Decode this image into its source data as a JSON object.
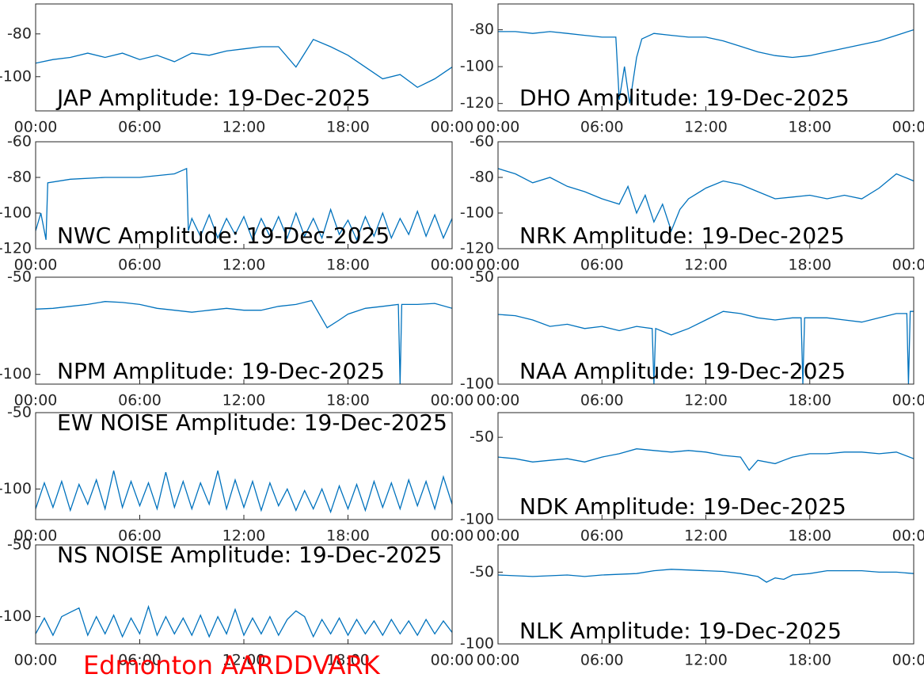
{
  "chart_data": [
    {
      "type": "line",
      "title": "JAP Amplitude: 19-Dec-2025",
      "color": "#0072bd",
      "x": [
        0,
        1,
        2,
        3,
        4,
        5,
        6,
        7,
        8,
        9,
        10,
        11,
        12,
        13,
        14,
        15,
        16,
        17,
        18,
        19,
        20,
        21,
        22,
        23,
        24
      ],
      "values": [
        -93.7,
        -92,
        -91,
        -89,
        -91,
        -89,
        -92,
        -90,
        -93,
        -89,
        -90,
        -88,
        -87,
        -86,
        -86,
        -95.5,
        -82.6,
        -86,
        -90,
        -95.5,
        -101,
        -99,
        -105,
        -101,
        -95.5
      ],
      "xlim": [
        0,
        24
      ],
      "xticks": [
        {
          "value": 0,
          "label": "00:00"
        },
        {
          "value": 6,
          "label": "06:00"
        },
        {
          "value": 12,
          "label": "12:00"
        },
        {
          "value": 18,
          "label": "18:00"
        },
        {
          "value": 24,
          "label": "00:00"
        }
      ],
      "ylim": [
        -116,
        -66
      ],
      "yticks": [
        -80,
        -100
      ]
    },
    {
      "type": "line",
      "title": "DHO Amplitude: 19-Dec-2025",
      "color": "#0072bd",
      "x": [
        0,
        1,
        2,
        3,
        4,
        5,
        6,
        6.8,
        7,
        7.3,
        7.6,
        8,
        8.3,
        9,
        10,
        11,
        12,
        13,
        14,
        15,
        16,
        17,
        18,
        19,
        20,
        21,
        22,
        23,
        24
      ],
      "values": [
        -81,
        -81,
        -82,
        -81,
        -82,
        -83,
        -84,
        -84,
        -118,
        -100,
        -120,
        -95,
        -85,
        -82,
        -83,
        -84,
        -84,
        -86,
        -89,
        -92,
        -94,
        -95,
        -94,
        -92,
        -90,
        -88,
        -86,
        -83,
        -80
      ],
      "xlim": [
        0,
        24
      ],
      "xticks": [
        {
          "value": 0,
          "label": "00:00"
        },
        {
          "value": 6,
          "label": "06:00"
        },
        {
          "value": 12,
          "label": "12:00"
        },
        {
          "value": 18,
          "label": "18:00"
        },
        {
          "value": 24,
          "label": "00:00"
        }
      ],
      "ylim": [
        -124,
        -66
      ],
      "yticks": [
        -80,
        -100,
        -120
      ]
    },
    {
      "type": "line",
      "title": "NWC Amplitude: 19-Dec-2025",
      "color": "#0072bd",
      "x": [
        0,
        0.3,
        0.6,
        0.7,
        2,
        4,
        6,
        8,
        8.7,
        8.8,
        9,
        9.5,
        10,
        10.5,
        11,
        11.5,
        12,
        12.5,
        13,
        13.5,
        14,
        14.5,
        15,
        15.5,
        16,
        16.5,
        17,
        17.5,
        18,
        18.5,
        19,
        19.5,
        20,
        20.5,
        21,
        21.5,
        22,
        22.5,
        23,
        23.5,
        24
      ],
      "values": [
        -110,
        -100,
        -115,
        -83,
        -81,
        -80,
        -80,
        -78,
        -75,
        -110,
        -103,
        -113,
        -101,
        -114,
        -103,
        -112,
        -102,
        -115,
        -103,
        -113,
        -102,
        -114,
        -100,
        -113,
        -103,
        -114,
        -98,
        -112,
        -104,
        -115,
        -102,
        -113,
        -100,
        -114,
        -103,
        -112,
        -99,
        -113,
        -101,
        -114,
        -103
      ],
      "xlim": [
        0,
        24
      ],
      "xticks": [
        {
          "value": 0,
          "label": "00:00"
        },
        {
          "value": 6,
          "label": "06:00"
        },
        {
          "value": 12,
          "label": "12:00"
        },
        {
          "value": 18,
          "label": "18:00"
        },
        {
          "value": 24,
          "label": "00:00"
        }
      ],
      "ylim": [
        -120,
        -60
      ],
      "yticks": [
        -60,
        -80,
        -100,
        -120
      ]
    },
    {
      "type": "line",
      "title": "NRK Amplitude: 19-Dec-2025",
      "color": "#0072bd",
      "x": [
        0,
        1,
        2,
        3,
        4,
        5,
        6,
        7,
        7.5,
        8,
        8.5,
        9,
        9.5,
        10,
        10.5,
        11,
        12,
        13,
        14,
        15,
        16,
        17,
        18,
        19,
        20,
        21,
        22,
        23,
        24
      ],
      "values": [
        -75,
        -78,
        -83,
        -80,
        -85,
        -88,
        -92,
        -95,
        -85,
        -100,
        -90,
        -105,
        -95,
        -110,
        -98,
        -92,
        -86,
        -82,
        -84,
        -88,
        -92,
        -91,
        -90,
        -92,
        -90,
        -92,
        -86,
        -78,
        -82
      ],
      "xlim": [
        0,
        24
      ],
      "xticks": [
        {
          "value": 0,
          "label": "00:00"
        },
        {
          "value": 6,
          "label": "06:00"
        },
        {
          "value": 12,
          "label": "12:00"
        },
        {
          "value": 18,
          "label": "18:00"
        },
        {
          "value": 24,
          "label": "00:00"
        }
      ],
      "ylim": [
        -120,
        -60
      ],
      "yticks": [
        -60,
        -80,
        -100,
        -120
      ]
    },
    {
      "type": "line",
      "title": "NPM Amplitude: 19-Dec-2025",
      "color": "#0072bd",
      "x": [
        0,
        1,
        2,
        3,
        4,
        5,
        6,
        7,
        8,
        9,
        10,
        11,
        12,
        13,
        14,
        15,
        15.9,
        16.8,
        17.5,
        18,
        19,
        20,
        20.9,
        21,
        21.1,
        22,
        23,
        24
      ],
      "values": [
        -66.4,
        -66,
        -65,
        -64,
        -62.5,
        -63,
        -64,
        -66,
        -67,
        -68,
        -67,
        -66,
        -67,
        -67,
        -65,
        -64,
        -62,
        -76,
        -72,
        -69,
        -66,
        -65,
        -64,
        -105,
        -64,
        -64,
        -63.5,
        -66
      ],
      "xlim": [
        0,
        24
      ],
      "xticks": [
        {
          "value": 0,
          "label": "00:00"
        },
        {
          "value": 6,
          "label": "06:00"
        },
        {
          "value": 12,
          "label": "12:00"
        },
        {
          "value": 18,
          "label": "18:00"
        },
        {
          "value": 24,
          "label": "00:00"
        }
      ],
      "ylim": [
        -105,
        -50
      ],
      "yticks": [
        -50,
        -100
      ]
    },
    {
      "type": "line",
      "title": "NAA Amplitude: 19-Dec-2025",
      "color": "#0072bd",
      "x": [
        0,
        1,
        2,
        3,
        4,
        5,
        6,
        7,
        8,
        8.9,
        9,
        9.1,
        10,
        11,
        12,
        13,
        14,
        15,
        16,
        17,
        17.5,
        17.6,
        17.7,
        18,
        19,
        20,
        21,
        22,
        23,
        23.6,
        23.7,
        23.8,
        24
      ],
      "values": [
        -67.4,
        -68,
        -70,
        -73,
        -72,
        -74,
        -73,
        -75,
        -73,
        -74,
        -100,
        -74,
        -77,
        -74,
        -70,
        -66,
        -67,
        -69,
        -70,
        -69,
        -69,
        -100,
        -69,
        -69,
        -69,
        -70,
        -71,
        -69,
        -67,
        -67,
        -100,
        -66,
        -66
      ],
      "xlim": [
        0,
        24
      ],
      "xticks": [
        {
          "value": 0,
          "label": "00:00"
        },
        {
          "value": 6,
          "label": "06:00"
        },
        {
          "value": 12,
          "label": "12:00"
        },
        {
          "value": 18,
          "label": "18:00"
        },
        {
          "value": 24,
          "label": "00:00"
        }
      ],
      "ylim": [
        -100,
        -50
      ],
      "yticks": [
        -50,
        -100
      ]
    },
    {
      "type": "line",
      "title": "EW NOISE Amplitude: 19-Dec-2025",
      "color": "#0072bd",
      "x": [
        0,
        0.5,
        1,
        1.5,
        2,
        2.5,
        3,
        3.5,
        4,
        4.5,
        5,
        5.5,
        6,
        6.5,
        7,
        7.5,
        8,
        8.5,
        9,
        9.5,
        10,
        10.5,
        11,
        11.5,
        12,
        12.5,
        13,
        13.5,
        14,
        14.5,
        15,
        15.5,
        16,
        16.5,
        17,
        17.5,
        18,
        18.5,
        19,
        19.5,
        20,
        20.5,
        21,
        21.5,
        22,
        22.5,
        23,
        23.5,
        24
      ],
      "values": [
        -113,
        -96,
        -112,
        -95,
        -114,
        -97,
        -110,
        -94,
        -113,
        -88,
        -112,
        -95,
        -111,
        -96,
        -113,
        -89,
        -112,
        -95,
        -113,
        -96,
        -110,
        -88,
        -113,
        -94,
        -112,
        -95,
        -114,
        -96,
        -111,
        -100,
        -114,
        -101,
        -113,
        -100,
        -115,
        -98,
        -113,
        -97,
        -114,
        -95,
        -112,
        -96,
        -113,
        -94,
        -111,
        -95,
        -113,
        -92,
        -110
      ],
      "xlim": [
        0,
        24
      ],
      "xticks": [
        {
          "value": 0,
          "label": "00:00"
        },
        {
          "value": 6,
          "label": "06:00"
        },
        {
          "value": 12,
          "label": "12:00"
        },
        {
          "value": 18,
          "label": "18:00"
        },
        {
          "value": 24,
          "label": "00:00"
        }
      ],
      "ylim": [
        -120,
        -50
      ],
      "yticks": [
        -50,
        -100
      ]
    },
    {
      "type": "line",
      "title": "NDK Amplitude: 19-Dec-2025",
      "color": "#0072bd",
      "x": [
        0,
        1,
        2,
        3,
        4,
        5,
        6,
        7,
        8,
        9,
        10,
        11,
        12,
        13,
        14,
        14.5,
        15,
        16,
        16.5,
        17,
        18,
        19,
        20,
        21,
        22,
        23,
        24
      ],
      "values": [
        -62,
        -63,
        -65,
        -64,
        -63,
        -65,
        -62,
        -60,
        -57,
        -58,
        -59,
        -58,
        -59,
        -61,
        -62,
        -70,
        -64,
        -66,
        -64,
        -62,
        -60,
        -60,
        -59,
        -59,
        -60,
        -59,
        -63
      ],
      "xlim": [
        0,
        24
      ],
      "xticks": [
        {
          "value": 0,
          "label": "00:00"
        },
        {
          "value": 6,
          "label": "06:00"
        },
        {
          "value": 12,
          "label": "12:00"
        },
        {
          "value": 18,
          "label": "18:00"
        },
        {
          "value": 24,
          "label": "00:00"
        }
      ],
      "ylim": [
        -100,
        -35
      ],
      "yticks": [
        -50,
        -100
      ]
    },
    {
      "type": "line",
      "title": "NS NOISE Amplitude: 19-Dec-2025",
      "color": "#0072bd",
      "x": [
        0,
        0.5,
        1,
        1.5,
        2,
        2.5,
        3,
        3.5,
        4,
        4.5,
        5,
        5.5,
        6,
        6.5,
        7,
        7.5,
        8,
        8.5,
        9,
        9.5,
        10,
        10.5,
        11,
        11.5,
        12,
        12.5,
        13,
        13.5,
        14,
        14.5,
        15,
        15.5,
        16,
        16.5,
        17,
        17.5,
        18,
        18.5,
        19,
        19.5,
        20,
        20.5,
        21,
        21.5,
        22,
        22.5,
        23,
        23.5,
        24
      ],
      "values": [
        -112,
        -101,
        -113,
        -100,
        -97,
        -94,
        -113,
        -100,
        -112,
        -99,
        -114,
        -101,
        -112,
        -93,
        -113,
        -100,
        -112,
        -101,
        -113,
        -99,
        -114,
        -100,
        -112,
        -95,
        -113,
        -101,
        -112,
        -100,
        -113,
        -102,
        -96,
        -100,
        -114,
        -102,
        -112,
        -101,
        -113,
        -102,
        -112,
        -103,
        -113,
        -102,
        -112,
        -103,
        -113,
        -102,
        -112,
        -103,
        -111
      ],
      "xlim": [
        0,
        24
      ],
      "xticks": [
        {
          "value": 0,
          "label": "00:00"
        },
        {
          "value": 6,
          "label": "06:00"
        },
        {
          "value": 12,
          "label": "12:00"
        },
        {
          "value": 18,
          "label": "18:00"
        },
        {
          "value": 24,
          "label": "00:00"
        }
      ],
      "ylim": [
        -119,
        -50
      ],
      "yticks": [
        -50,
        -100
      ]
    },
    {
      "type": "line",
      "title": "NLK Amplitude: 19-Dec-2025",
      "color": "#0072bd",
      "x": [
        0,
        2,
        4,
        5,
        6,
        8,
        9,
        10,
        11,
        12,
        13,
        14,
        15,
        15.5,
        16,
        16.5,
        17,
        18,
        19,
        20,
        21,
        22,
        23,
        24
      ],
      "values": [
        -52,
        -53,
        -52,
        -53,
        -52,
        -51,
        -49,
        -48,
        -48.5,
        -49,
        -49.5,
        -51,
        -53,
        -57,
        -54,
        -55,
        -52,
        -51,
        -49,
        -49,
        -49,
        -50,
        -50,
        -51
      ],
      "xlim": [
        0,
        24
      ],
      "xticks": [
        {
          "value": 0,
          "label": "00:00"
        },
        {
          "value": 6,
          "label": "06:00"
        },
        {
          "value": 12,
          "label": "12:00"
        },
        {
          "value": 18,
          "label": "18:00"
        },
        {
          "value": 24,
          "label": "00:00"
        }
      ],
      "ylim": [
        -100,
        -31
      ],
      "yticks": [
        -50,
        -100
      ]
    }
  ],
  "footer": "Edmonton AARDDVARK"
}
